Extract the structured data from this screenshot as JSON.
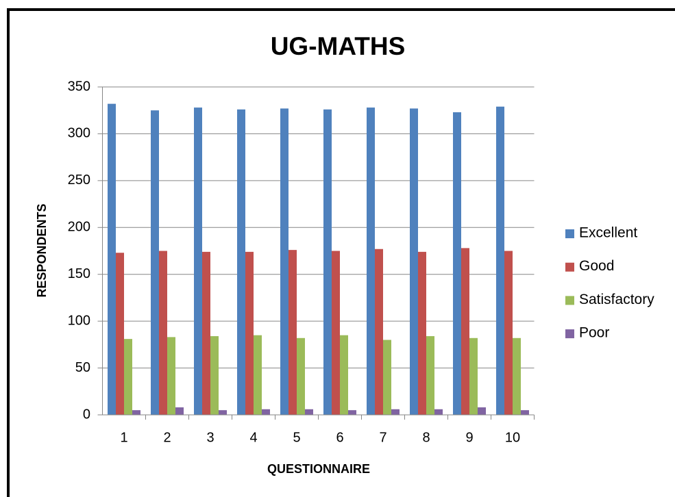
{
  "chart_data": {
    "type": "bar",
    "title": "UG-MATHS",
    "x_label": "QUESTIONNAIRE",
    "y_label": "RESPONDENTS",
    "categories": [
      "1",
      "2",
      "3",
      "4",
      "5",
      "6",
      "7",
      "8",
      "9",
      "10"
    ],
    "series": [
      {
        "name": "Excellent",
        "color": "#4f81bd",
        "values": [
          332,
          325,
          328,
          326,
          327,
          326,
          328,
          327,
          323,
          329
        ]
      },
      {
        "name": "Good",
        "color": "#c0504d",
        "values": [
          173,
          175,
          174,
          174,
          176,
          175,
          177,
          174,
          178,
          175
        ]
      },
      {
        "name": "Satisfactory",
        "color": "#9bbb59",
        "values": [
          81,
          83,
          84,
          85,
          82,
          85,
          80,
          84,
          82,
          82
        ]
      },
      {
        "name": "Poor",
        "color": "#8064a2",
        "values": [
          5,
          8,
          5,
          6,
          6,
          5,
          6,
          6,
          8,
          5
        ]
      }
    ],
    "ylim": [
      0,
      350
    ],
    "yticks": [
      0,
      50,
      100,
      150,
      200,
      250,
      300,
      350
    ],
    "grid": true,
    "legend": "right"
  }
}
